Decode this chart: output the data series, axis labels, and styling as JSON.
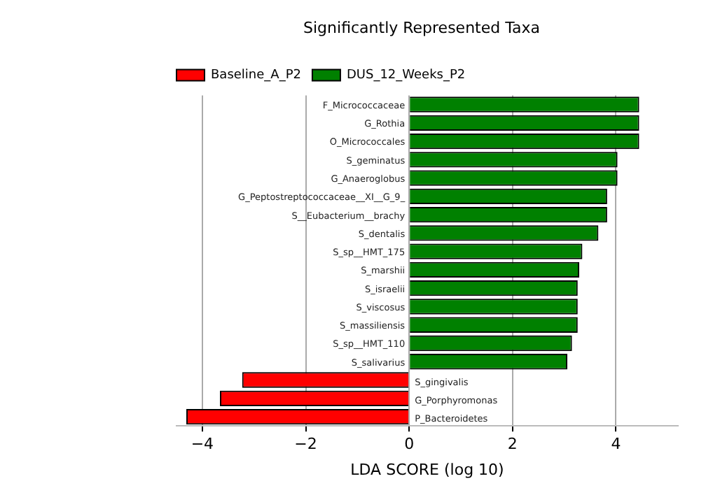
{
  "chart_data": {
    "type": "bar",
    "orientation": "horizontal",
    "title": "Significantly Represented Taxa",
    "xlabel": "LDA SCORE (log 10)",
    "categories": [
      "F_Micrococcaceae",
      "G_Rothia",
      "O_Micrococcales",
      "S_geminatus",
      "G_Anaeroglobus",
      "G_Peptostreptococcaceae__XI__G_9_",
      "S__Eubacterium__brachy",
      "S_dentalis",
      "S_sp__HMT_175",
      "S_marshii",
      "S_israelii",
      "S_viscosus",
      "S_massiliensis",
      "S_sp__HMT_110",
      "S_salivarius",
      "S_gingivalis",
      "G_Porphyromonas",
      "P_Bacteroidetes"
    ],
    "series": [
      {
        "name": "Baseline_A_P2",
        "color": "#ff0000",
        "values": [
          null,
          null,
          null,
          null,
          null,
          null,
          null,
          null,
          null,
          null,
          null,
          null,
          null,
          null,
          null,
          -3.23,
          -3.66,
          -4.31
        ]
      },
      {
        "name": "DUS_12_Weeks_P2",
        "color": "#008000",
        "values": [
          4.45,
          4.45,
          4.45,
          4.03,
          4.03,
          3.83,
          3.83,
          3.66,
          3.35,
          3.29,
          3.26,
          3.26,
          3.26,
          3.15,
          3.06,
          null,
          null,
          null
        ]
      }
    ],
    "xlim": [
      -4.5,
      5.2
    ],
    "xticks": [
      -4,
      -2,
      0,
      2,
      4
    ],
    "grid": "x",
    "legend": "top left"
  }
}
